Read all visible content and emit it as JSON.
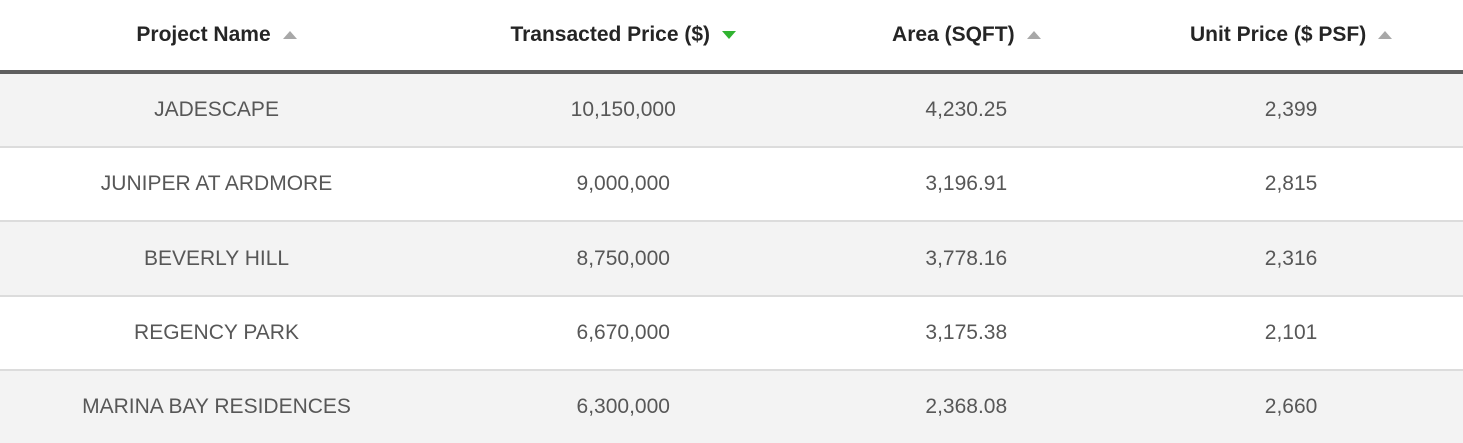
{
  "table": {
    "columns": [
      {
        "label": "Project Name",
        "sort": "asc",
        "active": false,
        "icon_color": "#a8a8a8"
      },
      {
        "label": "Transacted Price ($)",
        "sort": "desc",
        "active": true,
        "icon_color": "#31b331"
      },
      {
        "label": "Area (SQFT)",
        "sort": "asc",
        "active": false,
        "icon_color": "#a8a8a8"
      },
      {
        "label": "Unit Price ($ PSF)",
        "sort": "asc",
        "active": false,
        "icon_color": "#a8a8a8"
      }
    ],
    "rows": [
      {
        "project": "JADESCAPE",
        "transacted_price": "10,150,000",
        "area_sqft": "4,230.25",
        "unit_price_psf": "2,399"
      },
      {
        "project": "JUNIPER AT ARDMORE",
        "transacted_price": "9,000,000",
        "area_sqft": "3,196.91",
        "unit_price_psf": "2,815"
      },
      {
        "project": "BEVERLY HILL",
        "transacted_price": "8,750,000",
        "area_sqft": "3,778.16",
        "unit_price_psf": "2,316"
      },
      {
        "project": "REGENCY PARK",
        "transacted_price": "6,670,000",
        "area_sqft": "3,175.38",
        "unit_price_psf": "2,101"
      },
      {
        "project": "MARINA BAY RESIDENCES",
        "transacted_price": "6,300,000",
        "area_sqft": "2,368.08",
        "unit_price_psf": "2,660"
      }
    ]
  },
  "colors": {
    "header_text": "#252525",
    "cell_text": "#575757",
    "header_underline": "#5e5e5e",
    "row_separator": "#dcdcdc",
    "alt_row_bg": "#f3f3f3",
    "active_sort_green": "#31b331",
    "inactive_sort_gray": "#a8a8a8"
  }
}
